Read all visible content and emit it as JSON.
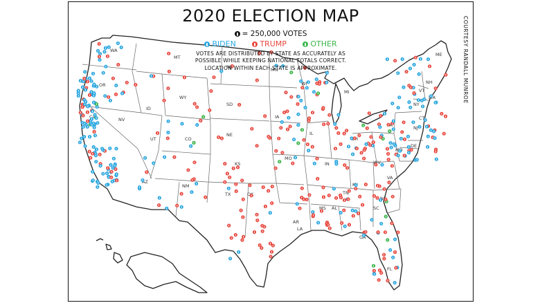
{
  "title": "2020 ELECTION MAP",
  "scale": "= 250,000 VOTES",
  "legend": {
    "biden": {
      "label": "BIDEN",
      "color": "#2aa7e0"
    },
    "trump": {
      "label": "TRUMP",
      "color": "#e8483f"
    },
    "other": {
      "label": "OTHER",
      "color": "#3bb54a"
    }
  },
  "scale_marker_color": "#111111",
  "note_line1": "VOTES ARE DISTRIBUTED BY STATE AS ACCURATELY AS",
  "note_line2": "POSSIBLE WHILE KEEPING NATIONAL TOTALS CORRECT.",
  "note_line3": "LOCATION WITHIN EACH STATE IS APPROXIMATE.",
  "credit": "COURTESY RANDALL MUNROE",
  "state_labels": [
    "WA",
    "OR",
    "CA",
    "NV",
    "ID",
    "MT",
    "WY",
    "UT",
    "CO",
    "AZ",
    "NM",
    "ND",
    "SD",
    "NE",
    "KS",
    "OK",
    "TX",
    "MN",
    "IA",
    "MO",
    "AR",
    "LA",
    "WI",
    "IL",
    "MI",
    "IN",
    "OH",
    "KY",
    "TN",
    "MS",
    "AL",
    "GA",
    "FL",
    "SC",
    "NC",
    "VA",
    "WV",
    "PA",
    "NY",
    "VT",
    "NH",
    "ME",
    "MA",
    "CT",
    "NJ",
    "DE",
    "MD"
  ]
}
